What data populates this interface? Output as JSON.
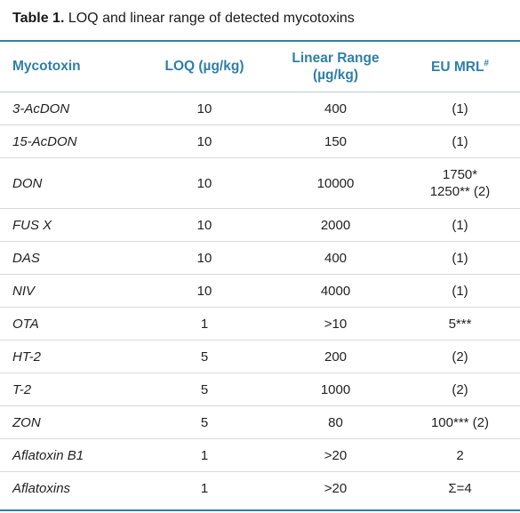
{
  "caption": {
    "label": "Table 1.",
    "text": " LOQ and linear range of detected mycotoxins"
  },
  "headers": {
    "mycotoxin": "Mycotoxin",
    "loq": "LOQ (µg/kg)",
    "linear_range_line1": "Linear Range",
    "linear_range_line2": "(µg/kg)",
    "eu_mrl": "EU MRL",
    "eu_mrl_sup": "#"
  },
  "rows": [
    {
      "mycotoxin": "3-AcDON",
      "loq": "10",
      "linear_range": "400",
      "eu_mrl": "(1)"
    },
    {
      "mycotoxin": "15-AcDON",
      "loq": "10",
      "linear_range": "150",
      "eu_mrl": "(1)"
    },
    {
      "mycotoxin": "DON",
      "loq": "10",
      "linear_range": "10000",
      "eu_mrl": "1750*",
      "eu_mrl_line2": "1250** (2)"
    },
    {
      "mycotoxin": "FUS X",
      "loq": "10",
      "linear_range": "2000",
      "eu_mrl": "(1)"
    },
    {
      "mycotoxin": "DAS",
      "loq": "10",
      "linear_range": "400",
      "eu_mrl": "(1)"
    },
    {
      "mycotoxin": "NIV",
      "loq": "10",
      "linear_range": "4000",
      "eu_mrl": "(1)"
    },
    {
      "mycotoxin": "OTA",
      "loq": "1",
      "linear_range": ">10",
      "eu_mrl": "5***"
    },
    {
      "mycotoxin": "HT-2",
      "loq": "5",
      "linear_range": "200",
      "eu_mrl": "(2)"
    },
    {
      "mycotoxin": "T-2",
      "loq": "5",
      "linear_range": "1000",
      "eu_mrl": "(2)"
    },
    {
      "mycotoxin": "ZON",
      "loq": "5",
      "linear_range": "80",
      "eu_mrl": "100*** (2)"
    },
    {
      "mycotoxin": "Aflatoxin B1",
      "loq": "1",
      "linear_range": ">20",
      "eu_mrl": "2"
    },
    {
      "mycotoxin": "Aflatoxins",
      "loq": "1",
      "linear_range": ">20",
      "eu_mrl": "Σ=4"
    }
  ]
}
